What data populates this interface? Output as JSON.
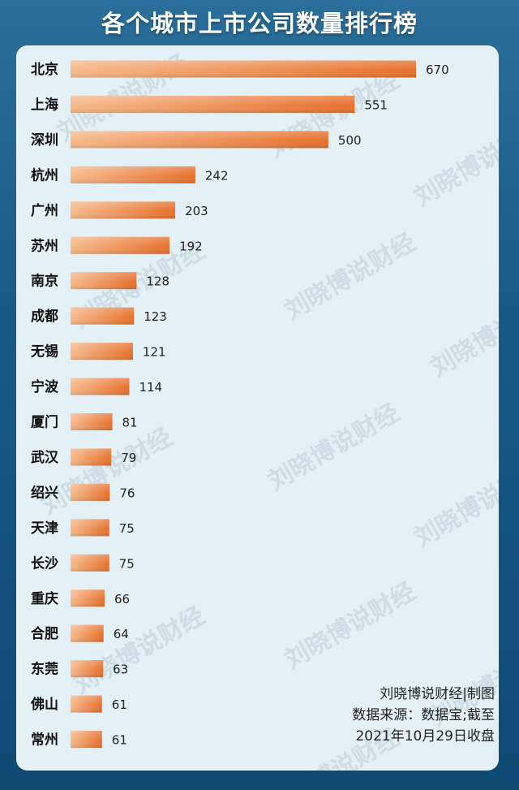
{
  "title": "各个城市上市公司数量排行榜",
  "watermark": "刘晓博说财经",
  "footer": {
    "credit": "刘晓博说财经|制图",
    "source": "数据来源：数据宝;截至",
    "date": "2021年10月29日收盘"
  },
  "colors": {
    "bar_start": "#f6b98a",
    "bar_end": "#e56f2c",
    "background": "#1a5d89",
    "panel": "#e3f0f6"
  },
  "chart_data": {
    "type": "bar",
    "orientation": "horizontal",
    "categories": [
      "北京",
      "上海",
      "深圳",
      "杭州",
      "广州",
      "苏州",
      "南京",
      "成都",
      "无锡",
      "宁波",
      "厦门",
      "武汉",
      "绍兴",
      "天津",
      "长沙",
      "重庆",
      "合肥",
      "东莞",
      "佛山",
      "常州"
    ],
    "values": [
      670,
      551,
      500,
      242,
      203,
      192,
      128,
      123,
      121,
      114,
      81,
      79,
      76,
      75,
      75,
      66,
      64,
      63,
      61,
      61
    ],
    "title": "各个城市上市公司数量排行榜",
    "xlabel": "",
    "ylabel": "",
    "xlim": [
      0,
      670
    ],
    "grid": false,
    "legend": "none"
  }
}
